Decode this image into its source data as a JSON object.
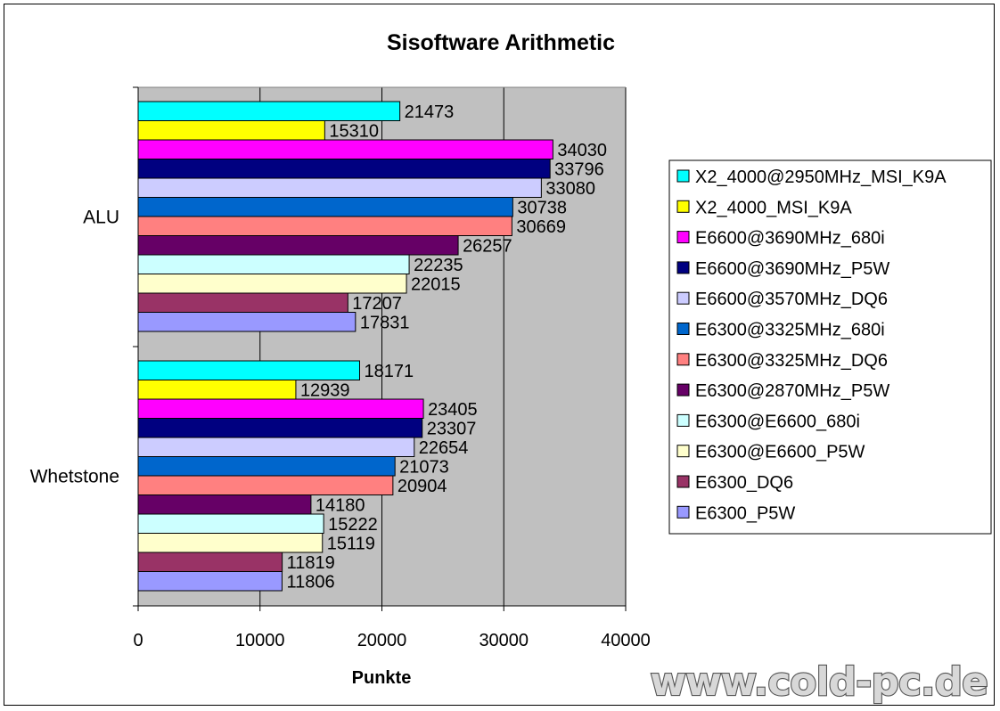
{
  "chart_data": {
    "type": "bar",
    "orientation": "horizontal",
    "title": "Sisoftware Arithmetic",
    "xlabel": "Punkte",
    "ylabel": "",
    "categories": [
      "ALU",
      "Whetstone"
    ],
    "xlim": [
      0,
      40000
    ],
    "xticks": [
      0,
      10000,
      20000,
      30000,
      40000
    ],
    "grid": "vertical major gridlines",
    "plot_background": "#c0c0c0",
    "legend_position": "right",
    "series": [
      {
        "name": "X2_4000@2950MHz_MSI_K9A",
        "color": "#00ffff",
        "values": [
          21473,
          18171
        ]
      },
      {
        "name": "X2_4000_MSI_K9A",
        "color": "#ffff00",
        "values": [
          15310,
          12939
        ]
      },
      {
        "name": "E6600@3690MHz_680i",
        "color": "#ff00ff",
        "values": [
          34030,
          23405
        ]
      },
      {
        "name": "E6600@3690MHz_P5W",
        "color": "#000080",
        "values": [
          33796,
          23307
        ]
      },
      {
        "name": "E6600@3570MHz_DQ6",
        "color": "#ccccff",
        "values": [
          33080,
          22654
        ]
      },
      {
        "name": "E6300@3325MHz_680i",
        "color": "#0066cc",
        "values": [
          30738,
          21073
        ]
      },
      {
        "name": "E6300@3325MHz_DQ6",
        "color": "#ff8080",
        "values": [
          30669,
          20904
        ]
      },
      {
        "name": "E6300@2870MHz_P5W",
        "color": "#660066",
        "values": [
          26257,
          14180
        ]
      },
      {
        "name": "E6300@E6600_680i",
        "color": "#ccffff",
        "values": [
          22235,
          15222
        ]
      },
      {
        "name": "E6300@E6600_P5W",
        "color": "#ffffcc",
        "values": [
          22015,
          15119
        ]
      },
      {
        "name": "E6300_DQ6",
        "color": "#993366",
        "values": [
          17207,
          11819
        ]
      },
      {
        "name": "E6300_P5W",
        "color": "#9999ff",
        "values": [
          17831,
          11806
        ]
      }
    ]
  },
  "watermark": "www.cold-pc.de"
}
